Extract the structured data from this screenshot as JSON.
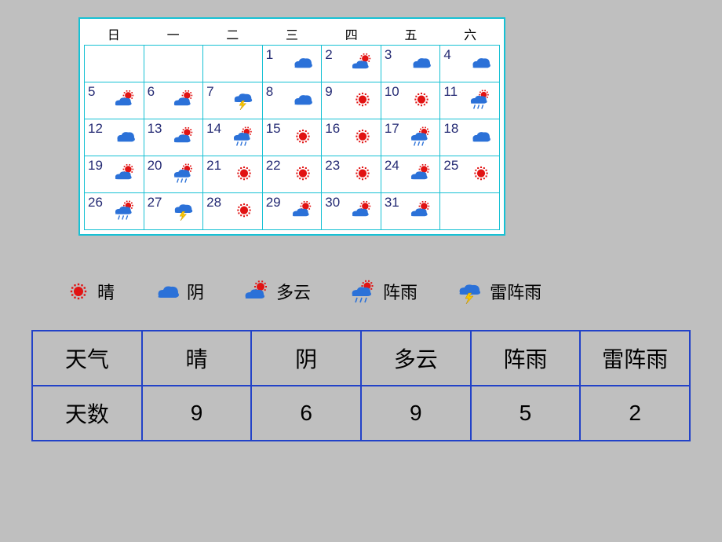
{
  "calendar": {
    "weekdays": [
      "日",
      "一",
      "二",
      "三",
      "四",
      "五",
      "六"
    ],
    "cells": [
      {
        "day": "",
        "weather": ""
      },
      {
        "day": "",
        "weather": ""
      },
      {
        "day": "",
        "weather": ""
      },
      {
        "day": "1",
        "weather": "overcast"
      },
      {
        "day": "2",
        "weather": "partly"
      },
      {
        "day": "3",
        "weather": "overcast"
      },
      {
        "day": "4",
        "weather": "overcast"
      },
      {
        "day": "5",
        "weather": "partly"
      },
      {
        "day": "6",
        "weather": "partly"
      },
      {
        "day": "7",
        "weather": "thunder"
      },
      {
        "day": "8",
        "weather": "overcast"
      },
      {
        "day": "9",
        "weather": "sunny"
      },
      {
        "day": "10",
        "weather": "sunny"
      },
      {
        "day": "11",
        "weather": "shower"
      },
      {
        "day": "12",
        "weather": "overcast"
      },
      {
        "day": "13",
        "weather": "partly"
      },
      {
        "day": "14",
        "weather": "shower"
      },
      {
        "day": "15",
        "weather": "sunny"
      },
      {
        "day": "16",
        "weather": "sunny"
      },
      {
        "day": "17",
        "weather": "shower"
      },
      {
        "day": "18",
        "weather": "overcast"
      },
      {
        "day": "19",
        "weather": "partly"
      },
      {
        "day": "20",
        "weather": "shower"
      },
      {
        "day": "21",
        "weather": "sunny"
      },
      {
        "day": "22",
        "weather": "sunny"
      },
      {
        "day": "23",
        "weather": "sunny"
      },
      {
        "day": "24",
        "weather": "partly"
      },
      {
        "day": "25",
        "weather": "sunny"
      },
      {
        "day": "26",
        "weather": "shower"
      },
      {
        "day": "27",
        "weather": "thunder"
      },
      {
        "day": "28",
        "weather": "sunny"
      },
      {
        "day": "29",
        "weather": "partly"
      },
      {
        "day": "30",
        "weather": "partly"
      },
      {
        "day": "31",
        "weather": "partly"
      },
      {
        "day": "",
        "weather": ""
      }
    ]
  },
  "legend": [
    {
      "label": "晴",
      "weather": "sunny"
    },
    {
      "label": "阴",
      "weather": "overcast"
    },
    {
      "label": "多云",
      "weather": "partly"
    },
    {
      "label": "阵雨",
      "weather": "shower"
    },
    {
      "label": "雷阵雨",
      "weather": "thunder"
    }
  ],
  "table": {
    "header_label": "天气",
    "row_label": "天数",
    "columns": [
      "晴",
      "阴",
      "多云",
      "阵雨",
      "雷阵雨"
    ],
    "values": [
      "9",
      "6",
      "9",
      "5",
      "2"
    ]
  },
  "colors": {
    "page_bg": "#bfbfbf",
    "calendar_border": "#17c1d4",
    "cell_bg": "#ffffff",
    "num_color": "#252b74",
    "table_border": "#2242c8",
    "sun": "#e11313",
    "cloud": "#2b71d8",
    "bolt": "#f9c500",
    "rain": "#2b71d8"
  }
}
